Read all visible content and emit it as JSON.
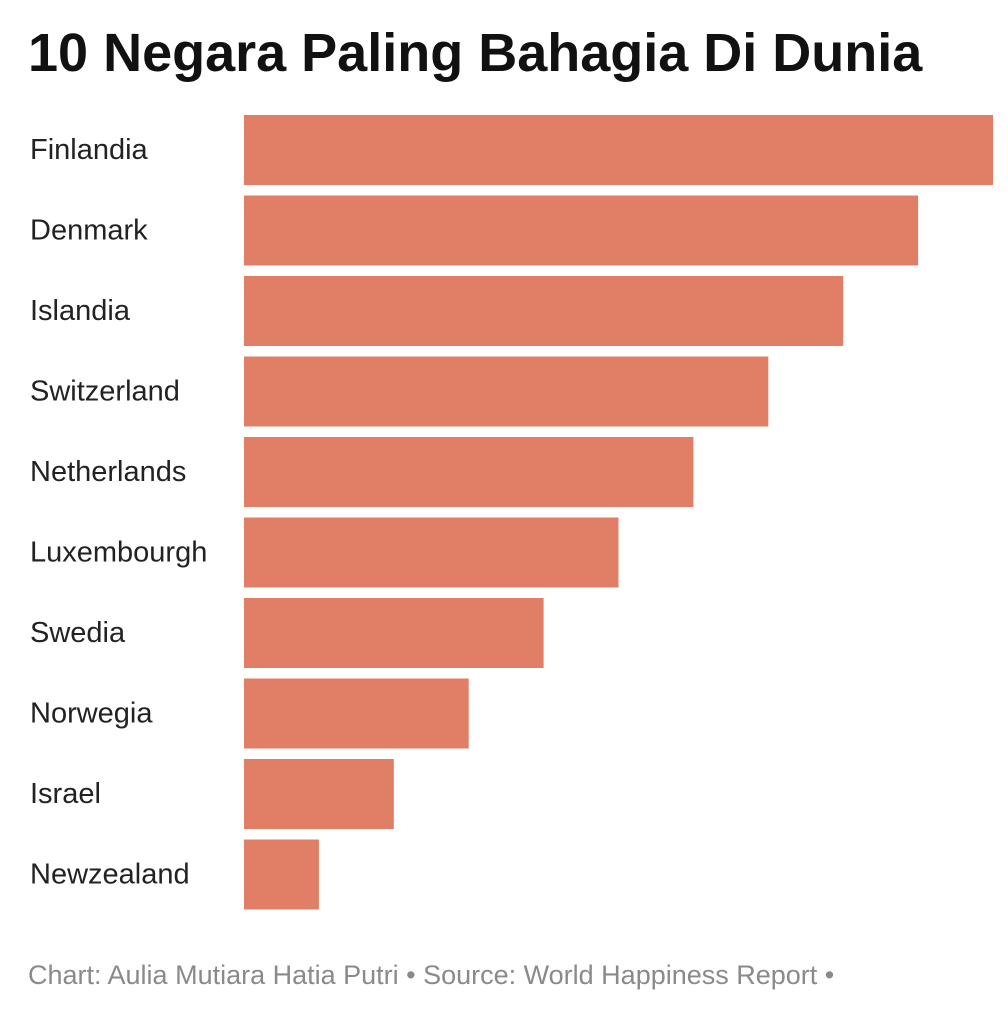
{
  "chart_data": {
    "type": "bar",
    "orientation": "horizontal",
    "title": "10 Negara Paling Bahagia Di Dunia",
    "categories": [
      "Finlandia",
      "Denmark",
      "Islandia",
      "Switzerland",
      "Netherlands",
      "Luxembourgh",
      "Swedia",
      "Norwegia",
      "Israel",
      "Newzealand"
    ],
    "values": [
      10,
      9,
      8,
      7,
      6,
      5,
      4,
      3,
      2,
      1
    ],
    "xlim": [
      0,
      10
    ],
    "grid": false,
    "legend": "none",
    "bar_color": "#e07e66"
  },
  "footer": {
    "credit": "Chart: Aulia Mutiara Hatia Putri • Source: World Happiness Report •"
  }
}
